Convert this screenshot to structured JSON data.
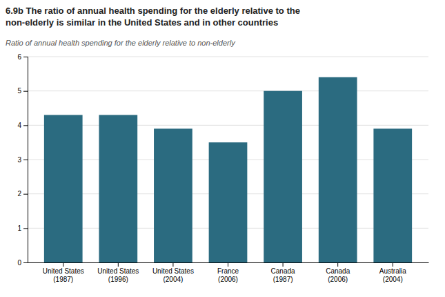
{
  "chart_data": {
    "type": "bar",
    "title": "6.9b  The ratio of annual health spending for the elderly relative to the\nnon-elderly is similar in the United States and in other countries",
    "subtitle": "Ratio of annual health spending for the elderly relative to non-elderly",
    "categories": [
      "United States\n(1987)",
      "United States\n(1996)",
      "United States\n(2004)",
      "France\n(2006)",
      "Canada\n(1987)",
      "Canada\n(2006)",
      "Australia\n(2004)"
    ],
    "values": [
      4.3,
      4.3,
      3.9,
      3.5,
      5.0,
      5.4,
      3.9
    ],
    "color": "#2b6b80",
    "ylim": [
      0,
      6
    ],
    "yticks": [
      0,
      1,
      2,
      3,
      4,
      5,
      6
    ],
    "grid": true
  }
}
